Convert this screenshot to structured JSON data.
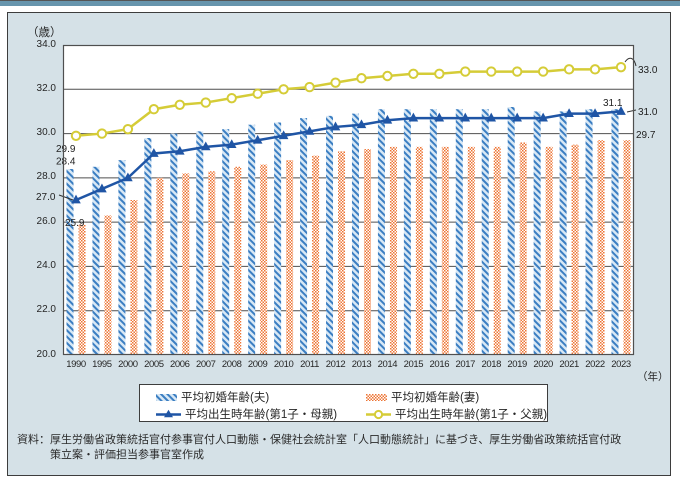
{
  "chart_data": {
    "type": "combo-bar-line",
    "y_unit": "（歳）",
    "x_unit": "（年）",
    "ylim": [
      20,
      34
    ],
    "yticks": [
      20,
      22,
      24,
      26,
      28,
      30,
      32,
      34
    ],
    "grid": true,
    "legend_position": "bottom",
    "categories": [
      "1990",
      "1995",
      "2000",
      "2005",
      "2006",
      "2007",
      "2008",
      "2009",
      "2010",
      "2011",
      "2012",
      "2013",
      "2014",
      "2015",
      "2016",
      "2017",
      "2018",
      "2019",
      "2020",
      "2021",
      "2022",
      "2023"
    ],
    "series": [
      {
        "key": "husband",
        "name": "平均初婚年齢(夫)",
        "render": "bar",
        "values": [
          28.4,
          28.5,
          28.8,
          29.8,
          30.0,
          30.1,
          30.2,
          30.4,
          30.5,
          30.7,
          30.8,
          30.9,
          31.1,
          31.1,
          31.1,
          31.1,
          31.1,
          31.2,
          31.0,
          31.0,
          31.1,
          31.1
        ]
      },
      {
        "key": "wife",
        "name": "平均初婚年齢(妻)",
        "render": "bar",
        "values": [
          25.9,
          26.3,
          27.0,
          28.0,
          28.2,
          28.3,
          28.5,
          28.6,
          28.8,
          29.0,
          29.2,
          29.3,
          29.4,
          29.4,
          29.4,
          29.4,
          29.4,
          29.6,
          29.4,
          29.5,
          29.7,
          29.7
        ]
      },
      {
        "key": "mother",
        "name": "平均出生時年齢(第1子・母親)",
        "render": "line",
        "values": [
          27.0,
          27.5,
          28.0,
          29.1,
          29.2,
          29.4,
          29.5,
          29.7,
          29.9,
          30.1,
          30.3,
          30.4,
          30.6,
          30.7,
          30.7,
          30.7,
          30.7,
          30.7,
          30.7,
          30.9,
          30.9,
          31.0
        ]
      },
      {
        "key": "father",
        "name": "平均出生時年齢(第1子・父親)",
        "render": "line",
        "values": [
          29.9,
          30.0,
          30.2,
          31.1,
          31.3,
          31.4,
          31.6,
          31.8,
          32.0,
          32.1,
          32.3,
          32.5,
          32.6,
          32.7,
          32.7,
          32.8,
          32.8,
          32.8,
          32.8,
          32.9,
          32.9,
          33.0
        ]
      }
    ],
    "annotations": [
      {
        "text": "29.9",
        "series": "father",
        "year": "1990"
      },
      {
        "text": "28.4",
        "series": "husband",
        "year": "1990"
      },
      {
        "text": "27.0",
        "series": "mother",
        "year": "1990"
      },
      {
        "text": "25.9",
        "series": "wife",
        "year": "1990"
      },
      {
        "text": "31.1",
        "series": "husband",
        "year": "2023"
      },
      {
        "text": "33.0",
        "series": "father",
        "year": "2023"
      },
      {
        "text": "31.0",
        "series": "mother",
        "year": "2023"
      },
      {
        "text": "29.7",
        "series": "wife",
        "year": "2023"
      }
    ]
  },
  "legend": {
    "husband": "平均初婚年齢(夫)",
    "wife": "平均初婚年齢(妻)",
    "mother": "平均出生時年齢(第1子・母親)",
    "father": "平均出生時年齢(第1子・父親)"
  },
  "source": {
    "line1": "資料：厚生労働省政策統括官付参事官付人口動態・保健社会統計室「人口動態統計」に基づき、厚生労働省政策統括官付政",
    "line2": "策立案・評価担当参事官室作成"
  },
  "colors": {
    "husband_bar_stripe": "#3b7ec2",
    "husband_bar_bg": "#d8e8f5",
    "wife_bar_dot": "#ed7434",
    "wife_bar_bg": "#ffffff",
    "mother_line": "#1f55a5",
    "father_line": "#d5cc37",
    "grid": "#4f4f4f",
    "panel_bg": "#d5e1e7",
    "accent_strip": "#6795ad",
    "annotation_text": "#222222"
  }
}
